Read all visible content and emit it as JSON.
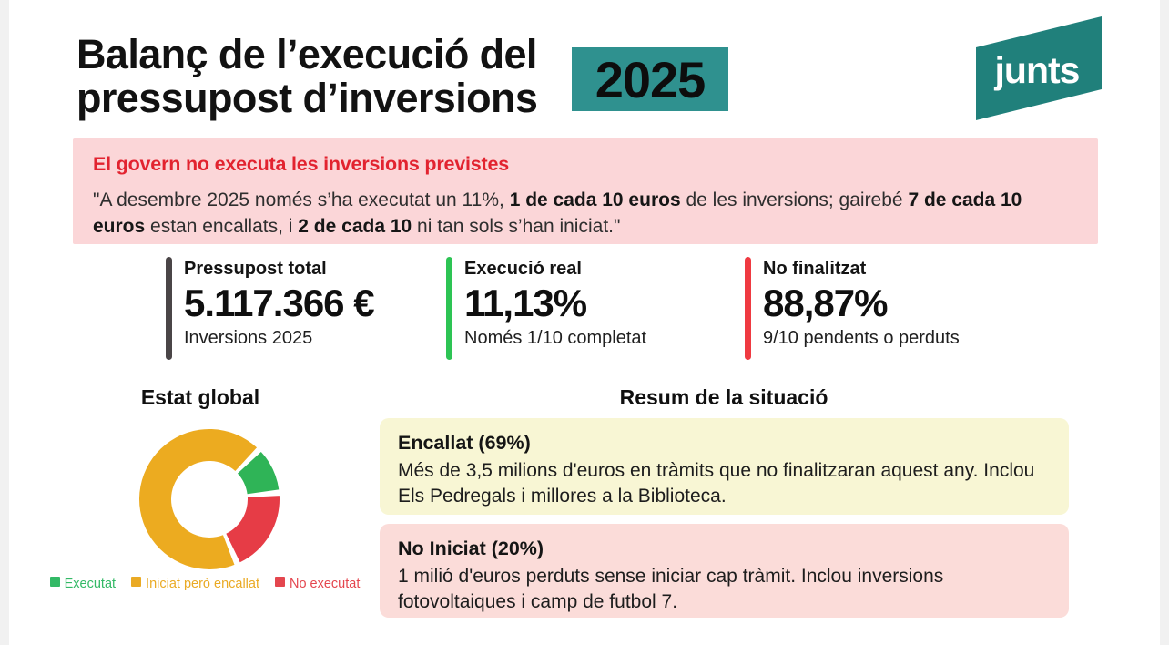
{
  "page": {
    "bg": "#ffffff",
    "edge_color": "#f1f1f1"
  },
  "header": {
    "title_line1": "Balanç de l’execució del",
    "title_line2": "pressupost d’inversions",
    "year_badge": "2025",
    "badge_bg": "#2f918f",
    "logo_text": "junts",
    "logo_color": "#20807b"
  },
  "alert": {
    "bg": "#fbd6d8",
    "heading": "El govern no executa les inversions previstes",
    "heading_color": "#e2232f",
    "quote_segments": [
      {
        "text": "\"A desembre 2025 només s’ha executat un 11%, ",
        "bold": false
      },
      {
        "text": "1 de cada 10 euros",
        "bold": true
      },
      {
        "text": " de les inversions; gairebé ",
        "bold": false
      },
      {
        "text": "7 de cada 10 euros",
        "bold": true
      },
      {
        "text": " estan encallats, i ",
        "bold": false
      },
      {
        "text": "2 de cada 10",
        "bold": true
      },
      {
        "text": " ni tan sols s’han iniciat.\"",
        "bold": false
      }
    ]
  },
  "stats": [
    {
      "label": "Pressupost total",
      "value": "5.117.366 €",
      "sub": "Inversions 2025",
      "bar_color": "#4a4547"
    },
    {
      "label": "Execució real",
      "value": "11,13%",
      "sub": "Només 1/10 completat",
      "bar_color": "#2dc454"
    },
    {
      "label": "No finalitzat",
      "value": "88,87%",
      "sub": "9/10 pendents o perduts",
      "bar_color": "#ef3a41"
    }
  ],
  "chart_data": {
    "type": "donut",
    "title": "Estat global",
    "segments": [
      {
        "label": "Executat",
        "value": 11,
        "color": "#2fb457"
      },
      {
        "label": "No executat",
        "value": 20,
        "color": "#e63c46"
      },
      {
        "label": "Iniciat però encallat",
        "value": 69,
        "color": "#ecab20"
      }
    ],
    "start_angle_deg": 45,
    "gap_deg": 5,
    "legend_position": "bottom",
    "legend": [
      {
        "label": "Executat",
        "color": "#33b966"
      },
      {
        "label": "Iniciat però encallat",
        "color": "#eaaa24"
      },
      {
        "label": "No executat",
        "color": "#e4464e"
      }
    ]
  },
  "summary": {
    "heading": "Resum de la situació",
    "boxes": [
      {
        "title": "Encallat (69%)",
        "body": "Més de 3,5 milions d'euros en tràmits que no finalitzaran aquest any. Inclou Els Pedregals i millores a la Biblioteca.",
        "bg": "#f8f6d4"
      },
      {
        "title": "No Iniciat (20%)",
        "body": "1 milió d'euros perduts sense iniciar cap tràmit. Inclou inversions fotovoltaiques i camp de futbol 7.",
        "bg": "#fbdcd9"
      }
    ]
  }
}
